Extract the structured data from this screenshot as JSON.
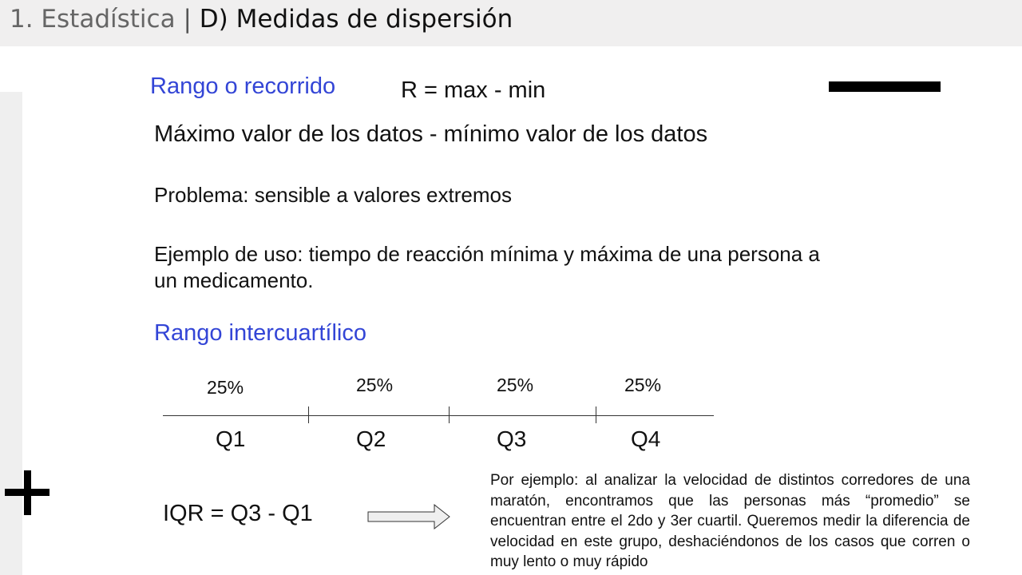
{
  "header": {
    "section": "1. Estadística",
    "separator": "|",
    "topic": "D) Medidas de dispersión"
  },
  "range": {
    "title": "Rango o recorrido",
    "formula": "R = max - min",
    "definition": "Máximo valor de los datos - mínimo valor de los datos",
    "problem": "Problema: sensible a valores extremos",
    "example_line1": "Ejemplo de uso: tiempo de reacción mínima y máxima de una persona a",
    "example_line2": "un medicamento."
  },
  "iqr": {
    "title": "Rango intercuartílico",
    "percentages": [
      "25%",
      "25%",
      "25%",
      "25%"
    ],
    "quartiles": [
      "Q1",
      "Q2",
      "Q3",
      "Q4"
    ],
    "formula": "IQR = Q3 - Q1",
    "note": "Por ejemplo: al analizar la velocidad de distintos corredores de una maratón, encontramos que las personas más “promedio” se encuentran entre el 2do y 3er cuartil. Queremos medir la diferencia de velocidad en este grupo, deshaciéndonos de los casos que corren o muy lento o muy rápido"
  },
  "icons": {
    "plus": "plus-icon",
    "arrow": "right-arrow-icon"
  },
  "colors": {
    "heading_blue": "#3345d6",
    "header_bg": "#f0efef"
  }
}
